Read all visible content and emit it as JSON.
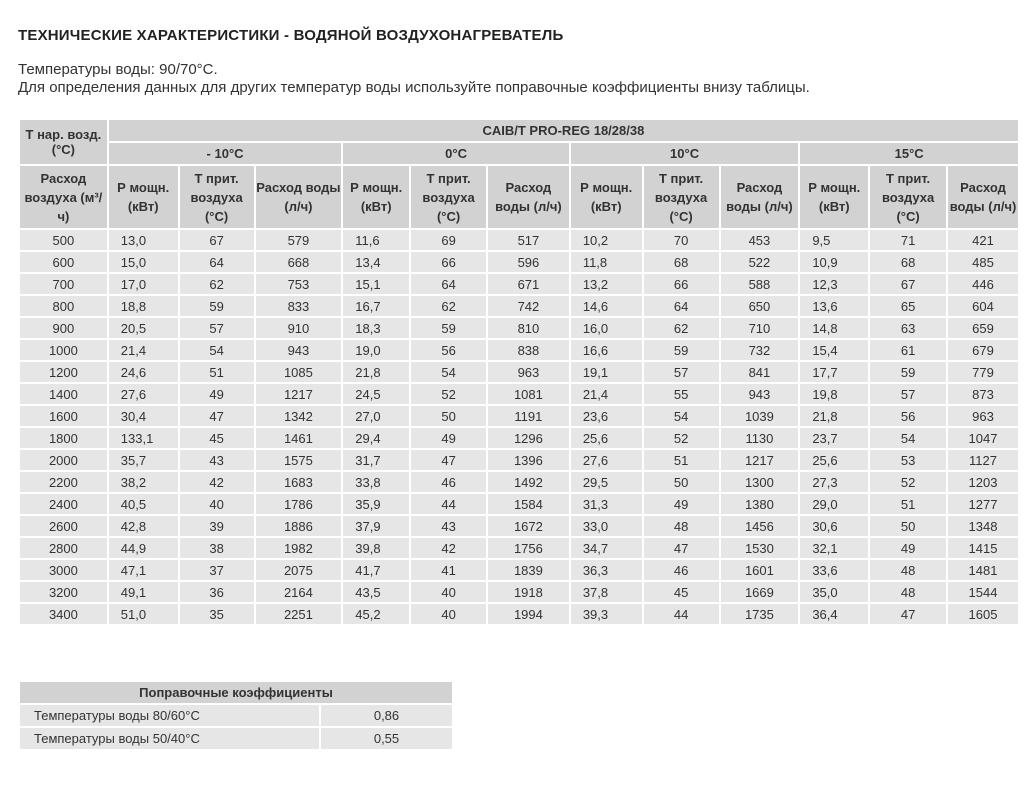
{
  "title": "ТЕХНИЧЕСКИЕ ХАРАКТЕРИСТИКИ - ВОДЯНОЙ ВОЗДУХОНАГРЕВАТЕЛЬ",
  "subtitle1": "Температуры воды: 90/70°С.",
  "subtitle2": "Для определения данных для других температур воды используйте поправочные коэффициенты внизу таблицы.",
  "table": {
    "corner": "Т нар. возд. (°С)",
    "model": "CAIB/T PRO-REG 18/28/38",
    "groups": [
      "- 10°С",
      "0°С",
      "10°С",
      "15°С"
    ],
    "first_col": "Расход воздуха (м³/ч)",
    "sub_headers": [
      "Р мощн. (кВт)",
      "Т прит. воздуха (°С)",
      "Расход воды (л/ч)"
    ],
    "rows": [
      [
        "500",
        "13,0",
        "67",
        "579",
        "11,6",
        "69",
        "517",
        "10,2",
        "70",
        "453",
        "9,5",
        "71",
        "421"
      ],
      [
        "600",
        "15,0",
        "64",
        "668",
        "13,4",
        "66",
        "596",
        "11,8",
        "68",
        "522",
        "10,9",
        "68",
        "485"
      ],
      [
        "700",
        "17,0",
        "62",
        "753",
        "15,1",
        "64",
        "671",
        "13,2",
        "66",
        "588",
        "12,3",
        "67",
        "446"
      ],
      [
        "800",
        "18,8",
        "59",
        "833",
        "16,7",
        "62",
        "742",
        "14,6",
        "64",
        "650",
        "13,6",
        "65",
        "604"
      ],
      [
        "900",
        "20,5",
        "57",
        "910",
        "18,3",
        "59",
        "810",
        "16,0",
        "62",
        "710",
        "14,8",
        "63",
        "659"
      ],
      [
        "1000",
        "21,4",
        "54",
        "943",
        "19,0",
        "56",
        "838",
        "16,6",
        "59",
        "732",
        "15,4",
        "61",
        "679"
      ],
      [
        "1200",
        "24,6",
        "51",
        "1085",
        "21,8",
        "54",
        "963",
        "19,1",
        "57",
        "841",
        "17,7",
        "59",
        "779"
      ],
      [
        "1400",
        "27,6",
        "49",
        "1217",
        "24,5",
        "52",
        "1081",
        "21,4",
        "55",
        "943",
        "19,8",
        "57",
        "873"
      ],
      [
        "1600",
        "30,4",
        "47",
        "1342",
        "27,0",
        "50",
        "1191",
        "23,6",
        "54",
        "1039",
        "21,8",
        "56",
        "963"
      ],
      [
        "1800",
        "133,1",
        "45",
        "1461",
        "29,4",
        "49",
        "1296",
        "25,6",
        "52",
        "1130",
        "23,7",
        "54",
        "1047"
      ],
      [
        "2000",
        "35,7",
        "43",
        "1575",
        "31,7",
        "47",
        "1396",
        "27,6",
        "51",
        "1217",
        "25,6",
        "53",
        "1127"
      ],
      [
        "2200",
        "38,2",
        "42",
        "1683",
        "33,8",
        "46",
        "1492",
        "29,5",
        "50",
        "1300",
        "27,3",
        "52",
        "1203"
      ],
      [
        "2400",
        "40,5",
        "40",
        "1786",
        "35,9",
        "44",
        "1584",
        "31,3",
        "49",
        "1380",
        "29,0",
        "51",
        "1277"
      ],
      [
        "2600",
        "42,8",
        "39",
        "1886",
        "37,9",
        "43",
        "1672",
        "33,0",
        "48",
        "1456",
        "30,6",
        "50",
        "1348"
      ],
      [
        "2800",
        "44,9",
        "38",
        "1982",
        "39,8",
        "42",
        "1756",
        "34,7",
        "47",
        "1530",
        "32,1",
        "49",
        "1415"
      ],
      [
        "3000",
        "47,1",
        "37",
        "2075",
        "41,7",
        "41",
        "1839",
        "36,3",
        "46",
        "1601",
        "33,6",
        "48",
        "1481"
      ],
      [
        "3200",
        "49,1",
        "36",
        "2164",
        "43,5",
        "40",
        "1918",
        "37,8",
        "45",
        "1669",
        "35,0",
        "48",
        "1544"
      ],
      [
        "3400",
        "51,0",
        "35",
        "2251",
        "45,2",
        "40",
        "1994",
        "39,3",
        "44",
        "1735",
        "36,4",
        "47",
        "1605"
      ]
    ]
  },
  "correction": {
    "title": "Поправочные коэффициенты",
    "rows": [
      [
        "Температуры воды 80/60°С",
        "0,86"
      ],
      [
        "Температуры воды 50/40°С",
        "0,55"
      ]
    ]
  }
}
